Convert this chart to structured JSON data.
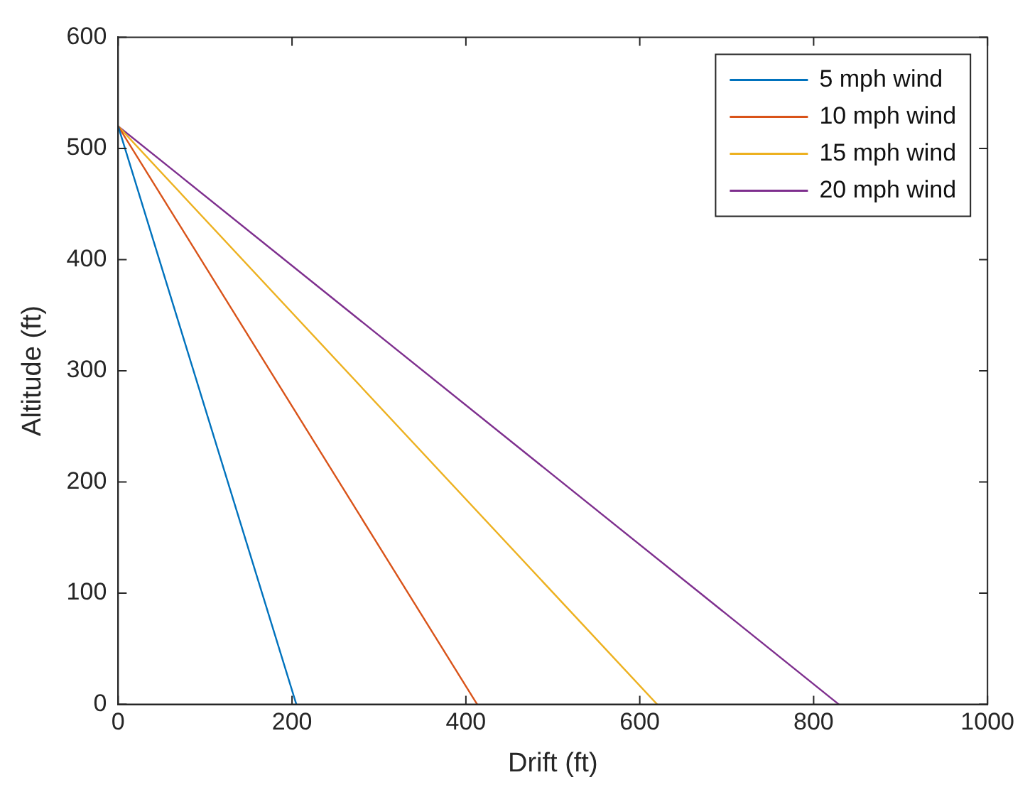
{
  "chart_data": {
    "type": "line",
    "xlabel": "Drift (ft)",
    "ylabel": "Altitude (ft)",
    "xlim": [
      0,
      1000
    ],
    "ylim": [
      0,
      600
    ],
    "xticks": [
      0,
      200,
      400,
      600,
      800,
      1000
    ],
    "yticks": [
      0,
      100,
      200,
      300,
      400,
      500,
      600
    ],
    "grid": false,
    "legend": "top right",
    "marker": "none",
    "line_style": "solid",
    "series": [
      {
        "name": "5 mph wind",
        "color": "#0072bd",
        "x": [
          0,
          205
        ],
        "values": [
          520,
          0
        ]
      },
      {
        "name": "10 mph wind",
        "color": "#d95319",
        "x": [
          0,
          413
        ],
        "values": [
          520,
          0
        ]
      },
      {
        "name": "15 mph wind",
        "color": "#edb120",
        "x": [
          0,
          620
        ],
        "values": [
          520,
          0
        ]
      },
      {
        "name": "20 mph wind",
        "color": "#7e2f8e",
        "x": [
          0,
          829
        ],
        "values": [
          520,
          0
        ]
      }
    ]
  }
}
